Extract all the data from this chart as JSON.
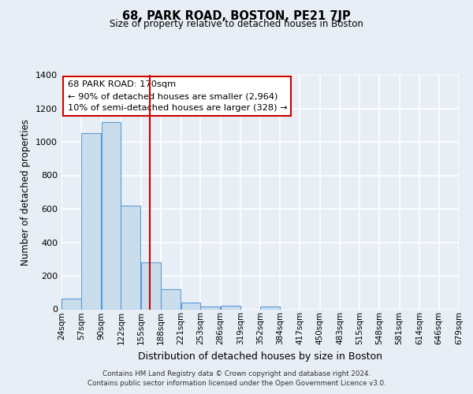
{
  "title": "68, PARK ROAD, BOSTON, PE21 7JP",
  "subtitle": "Size of property relative to detached houses in Boston",
  "xlabel": "Distribution of detached houses by size in Boston",
  "ylabel": "Number of detached properties",
  "footnote1": "Contains HM Land Registry data © Crown copyright and database right 2024.",
  "footnote2": "Contains public sector information licensed under the Open Government Licence v3.0.",
  "bar_color": "#c9dded",
  "bar_edge_color": "#5b9bd5",
  "bin_edges": [
    24,
    57,
    90,
    122,
    155,
    188,
    221,
    253,
    286,
    319,
    352,
    384,
    417,
    450,
    483,
    515,
    548,
    581,
    614,
    646,
    679
  ],
  "bar_heights": [
    65,
    1050,
    1120,
    620,
    280,
    120,
    40,
    15,
    20,
    0,
    15,
    0,
    0,
    0,
    0,
    0,
    0,
    0,
    0,
    0
  ],
  "x_tick_labels": [
    "24sqm",
    "57sqm",
    "90sqm",
    "122sqm",
    "155sqm",
    "188sqm",
    "221sqm",
    "253sqm",
    "286sqm",
    "319sqm",
    "352sqm",
    "384sqm",
    "417sqm",
    "450sqm",
    "483sqm",
    "515sqm",
    "548sqm",
    "581sqm",
    "614sqm",
    "646sqm",
    "679sqm"
  ],
  "ylim": [
    0,
    1400
  ],
  "yticks": [
    0,
    200,
    400,
    600,
    800,
    1000,
    1200,
    1400
  ],
  "red_line_x": 170,
  "annotation_title": "68 PARK ROAD: 170sqm",
  "annotation_line1": "← 90% of detached houses are smaller (2,964)",
  "annotation_line2": "10% of semi-detached houses are larger (328) →",
  "annotation_box_facecolor": "#ffffff",
  "annotation_box_edgecolor": "#cc0000",
  "background_color": "#e8eef5",
  "grid_color": "#ffffff"
}
